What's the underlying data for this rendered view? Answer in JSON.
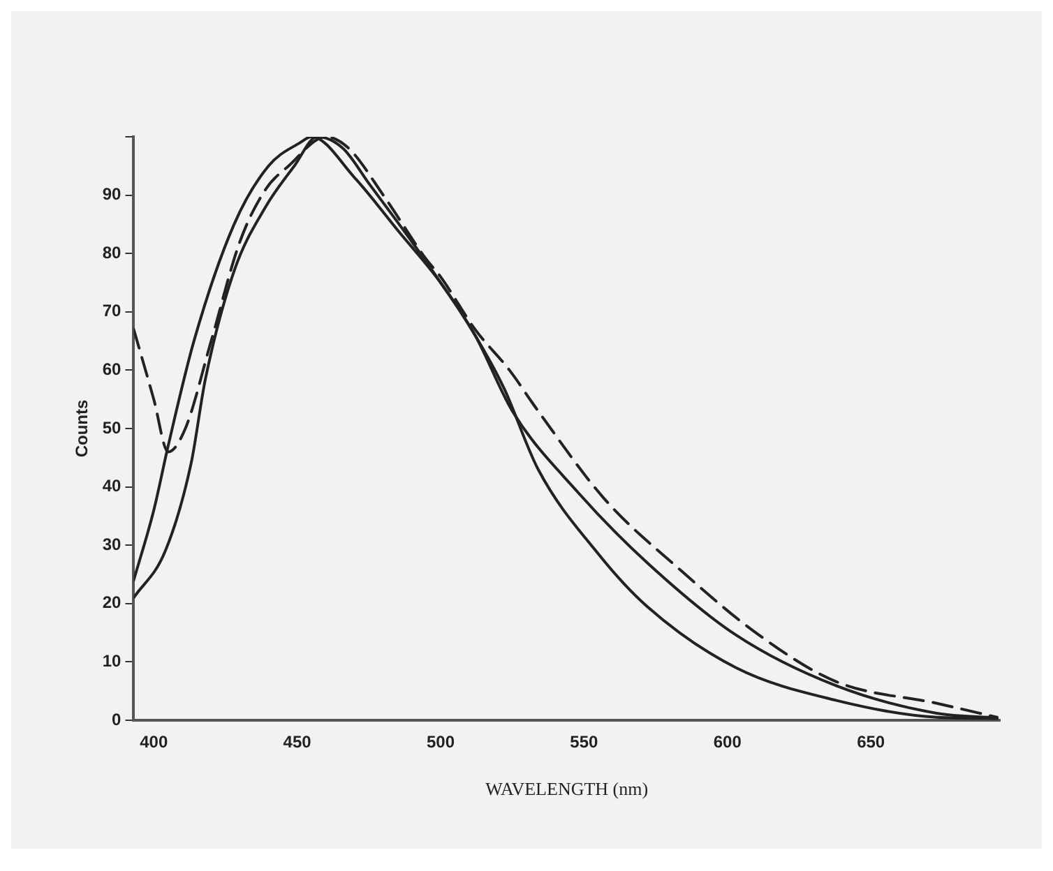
{
  "chart_data": {
    "type": "line",
    "xlabel": "WAVELENGTH (nm)",
    "ylabel": "Counts",
    "xlim": [
      393,
      695
    ],
    "ylim": [
      0,
      100
    ],
    "xticks": [
      400,
      450,
      500,
      550,
      600,
      650
    ],
    "yticks": [
      0,
      10,
      20,
      30,
      40,
      50,
      60,
      70,
      80,
      90,
      {
        "value": 100,
        "label": null
      }
    ],
    "grid": false,
    "legend": false,
    "marker": "none",
    "series": [
      {
        "color": "#222222",
        "line_style": "solid",
        "x": [
          393,
          400,
          405,
          414,
          428,
          440,
          451,
          455,
          470,
          485,
          500,
          512,
          522,
          534,
          555,
          572,
          603,
          638,
          673,
          694
        ],
        "values": [
          24,
          36,
          47,
          65,
          85,
          95,
          99,
          100,
          93,
          84,
          75,
          66,
          57,
          43,
          28.5,
          19.5,
          9,
          3.4,
          0.5,
          0.3
        ]
      },
      {
        "color": "#222222",
        "line_style": "solid",
        "x": [
          393,
          404,
          413,
          418,
          428,
          439,
          449,
          457,
          466,
          475,
          490,
          500,
          512,
          525,
          548,
          572,
          603,
          638,
          673,
          694
        ],
        "values": [
          21,
          29,
          44,
          58.5,
          77,
          88,
          95,
          100,
          98,
          92,
          82,
          75,
          66,
          53,
          39,
          27,
          14.6,
          5.9,
          1.2,
          0.4
        ]
      },
      {
        "color": "#222222",
        "line_style": "dashed",
        "x": [
          393,
          400,
          405,
          411,
          420,
          430,
          439,
          447,
          460,
          468,
          480,
          495,
          500,
          512,
          524,
          534,
          557,
          583,
          611,
          638,
          673,
          694
        ],
        "values": [
          67,
          55,
          46,
          50,
          65,
          82,
          91,
          95,
          100,
          98,
          90,
          79,
          76,
          67,
          60,
          53,
          38,
          26,
          14.6,
          6.6,
          2.9,
          0.5
        ]
      }
    ]
  }
}
